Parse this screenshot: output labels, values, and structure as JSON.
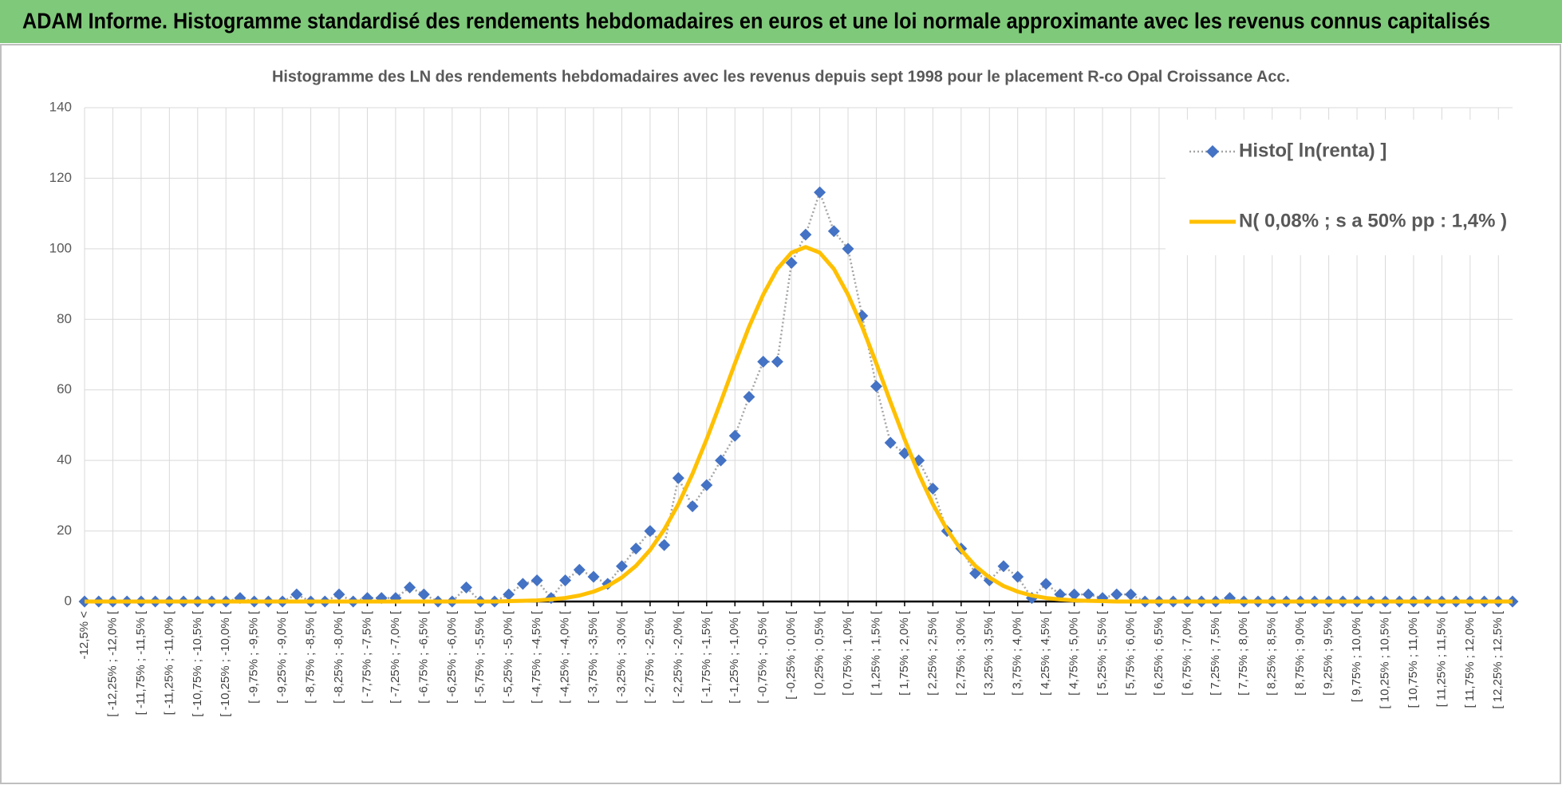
{
  "chart_data": {
    "type": "line",
    "header": "ADAM Informe. Histogramme standardisé des rendements hebdomadaires en euros et une loi normale approximante avec les revenus connus capitalisés",
    "title": "Histogramme des LN des rendements hebdomadaires avec les revenus depuis sept 1998 pour le placement R-co Opal Croissance Acc.",
    "categories": [
      "-12,5% <",
      null,
      "[ -12,25% ; -12,0% [",
      null,
      "[ -11,75% ; -11,5% [",
      null,
      "[ -11,25% ; -11,0% [",
      null,
      "[ -10,75% ; -10,5% [",
      null,
      "[ -10,25% ; -10,0% [",
      null,
      "[ -9,75% ; -9,5% [",
      null,
      "[ -9,25% ; -9,0% [",
      null,
      "[ -8,75% ; -8,5% [",
      null,
      "[ -8,25% ; -8,0% [",
      null,
      "[ -7,75% ; -7,5% [",
      null,
      "[ -7,25% ; -7,0% [",
      null,
      "[ -6,75% ; -6,5% [",
      null,
      "[ -6,25% ; -6,0% [",
      null,
      "[ -5,75% ; -5,5% [",
      null,
      "[ -5,25% ; -5,0% [",
      null,
      "[ -4,75% ; -4,5% [",
      null,
      "[ -4,25% ; -4,0% [",
      null,
      "[ -3,75% ; -3,5% [",
      null,
      "[ -3,25% ; -3,0% [",
      null,
      "[ -2,75% ; -2,5% [",
      null,
      "[ -2,25% ; -2,0% [",
      null,
      "[ -1,75% ; -1,5% [",
      null,
      "[ -1,25% ; -1,0% [",
      null,
      "[ -0,75% ; -0,5% [",
      null,
      "[ -0,25% ; 0,0% [",
      null,
      "[ 0,25% ; 0,5% [",
      null,
      "[ 0,75% ; 1,0% [",
      null,
      "[ 1,25% ; 1,5% [",
      null,
      "[ 1,75% ; 2,0% [",
      null,
      "[ 2,25% ; 2,5% [",
      null,
      "[ 2,75% ; 3,0% [",
      null,
      "[ 3,25% ; 3,5% [",
      null,
      "[ 3,75% ; 4,0% [",
      null,
      "[ 4,25% ; 4,5% [",
      null,
      "[ 4,75% ; 5,0% [",
      null,
      "[ 5,25% ; 5,5% [",
      null,
      "[ 5,75% ; 6,0% [",
      null,
      "[ 6,25% ; 6,5% [",
      null,
      "[ 6,75% ; 7,0% [",
      null,
      "[ 7,25% ; 7,5% [",
      null,
      "[ 7,75% ; 8,0% [",
      null,
      "[ 8,25% ; 8,5% [",
      null,
      "[ 8,75% ; 9,0% [",
      null,
      "[ 9,25% ; 9,5% [",
      null,
      "[ 9,75% ; 10,0% [",
      null,
      "[ 10,25% ; 10,5% [",
      null,
      "[ 10,75% ; 11,0% [",
      null,
      "[ 11,25% ; 11,5% [",
      null,
      "[ 11,75% ; 12,0% [",
      null,
      "[ 12,25% ; 12,5% [",
      null
    ],
    "series": [
      {
        "name": "Histo[ ln(renta) ]",
        "color": "#4472c4",
        "line_color": "#a5a5a5",
        "marker": "diamond",
        "dash": "dotted",
        "values": [
          0,
          0,
          0,
          0,
          0,
          0,
          0,
          0,
          0,
          0,
          0,
          1,
          0,
          0,
          0,
          2,
          0,
          0,
          2,
          0,
          1,
          1,
          1,
          4,
          2,
          0,
          0,
          4,
          0,
          0,
          2,
          5,
          6,
          1,
          6,
          9,
          7,
          5,
          10,
          15,
          20,
          16,
          35,
          27,
          33,
          40,
          47,
          58,
          68,
          68,
          96,
          104,
          116,
          105,
          100,
          81,
          61,
          45,
          42,
          40,
          32,
          20,
          15,
          8,
          6,
          10,
          7,
          1,
          5,
          2,
          2,
          2,
          1,
          2,
          2,
          0,
          0,
          0,
          0,
          0,
          0,
          1,
          0,
          0,
          0,
          0,
          0,
          0,
          0,
          0,
          0,
          0,
          0,
          0,
          0,
          0,
          0,
          0,
          0,
          0,
          0,
          0
        ]
      },
      {
        "name": "N( 0,08% ; s a 50% pp : 1,4% )",
        "color": "#ffc000",
        "marker": "none",
        "dash": "solid",
        "values": [
          0,
          0,
          0,
          0,
          0,
          0,
          0,
          0,
          0,
          0,
          0,
          0,
          0,
          0,
          0,
          0,
          0,
          0,
          0,
          0,
          0,
          0,
          0,
          0,
          0,
          0,
          0,
          0,
          0,
          0,
          0.1,
          0.2,
          0.3,
          0.6,
          1.0,
          1.7,
          2.8,
          4.4,
          6.8,
          10.1,
          14.6,
          20.4,
          27.6,
          36.2,
          46.0,
          56.6,
          67.5,
          77.9,
          87.0,
          94.3,
          98.9,
          100.5,
          98.9,
          94.3,
          87.0,
          77.9,
          67.5,
          56.6,
          46.0,
          36.2,
          27.6,
          20.4,
          14.6,
          10.1,
          6.8,
          4.4,
          2.8,
          1.7,
          1.0,
          0.6,
          0.3,
          0.2,
          0.1,
          0,
          0,
          0,
          0,
          0,
          0,
          0,
          0,
          0,
          0,
          0,
          0,
          0,
          0,
          0,
          0,
          0,
          0,
          0,
          0,
          0,
          0,
          0,
          0,
          0,
          0,
          0,
          0,
          0
        ]
      }
    ],
    "ylim": [
      0,
      140
    ],
    "yticks": [
      0,
      20,
      40,
      60,
      80,
      100,
      120,
      140
    ],
    "grid": true,
    "legend": "top-right"
  }
}
